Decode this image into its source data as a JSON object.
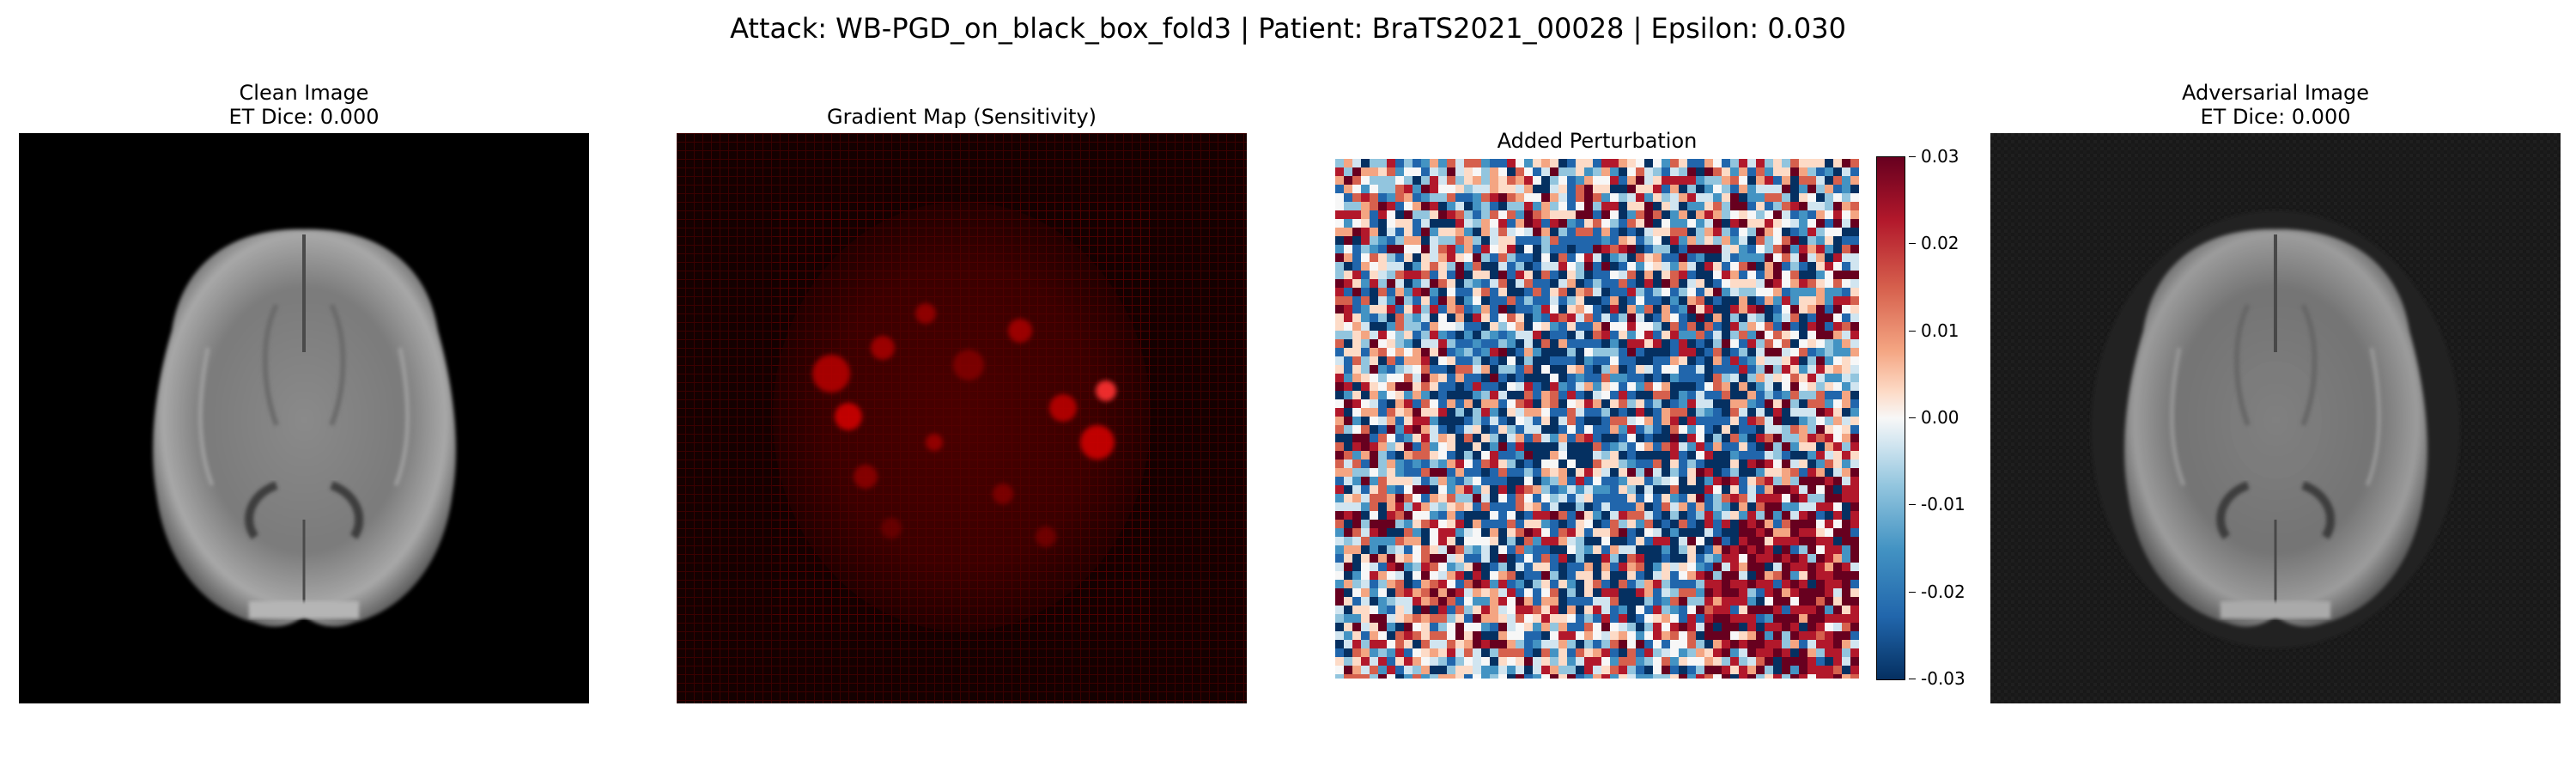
{
  "suptitle": "Attack: WB-PGD_on_black_box_fold3 | Patient: BraTS2021_00028 | Epsilon: 0.030",
  "panels": {
    "clean": {
      "title": "Clean Image",
      "subtitle": "ET Dice: 0.000"
    },
    "gradient": {
      "title": "Gradient Map (Sensitivity)"
    },
    "perturbation": {
      "title": "Added Perturbation",
      "colorbar": {
        "ticks": [
          "0.03",
          "0.02",
          "0.01",
          "0.00",
          "-0.01",
          "-0.02",
          "-0.03"
        ],
        "colormap": "RdBu_r",
        "max_color": "#67001f",
        "mid_color": "#f7f7f7",
        "min_color": "#053061"
      }
    },
    "adversarial": {
      "title": "Adversarial Image",
      "subtitle": "ET Dice: 0.000"
    }
  }
}
